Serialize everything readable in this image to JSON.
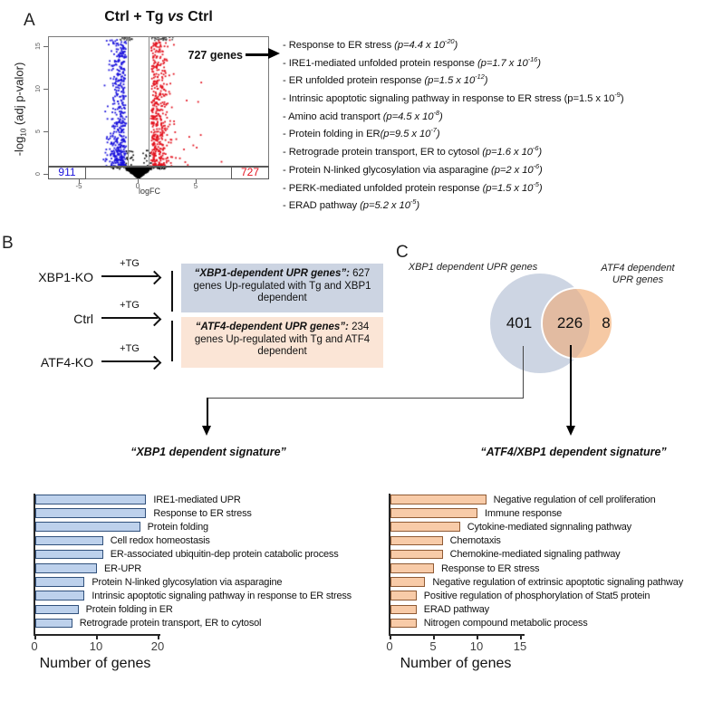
{
  "panels": {
    "a": "A",
    "b": "B",
    "c": "C"
  },
  "volcano": {
    "title_pre": "Ctrl + Tg ",
    "title_vs": "vs",
    "title_post": " Ctrl",
    "ylabel_pre": "-log",
    "ylabel_sub": "10",
    "ylabel_post": " (adj p-valor)"
  },
  "go_terms": [
    {
      "term": "Response to ER stress",
      "p": "  (p=4.4 x 10",
      "exp": "-20",
      "it": true
    },
    {
      "term": "IRE1-mediated unfolded protein response",
      "p": "  (p=1.7 x 10",
      "exp": "-16",
      "it": true
    },
    {
      "term": "ER unfolded protein response",
      "p": "  (p=1.5 x 10",
      "exp": "-12",
      "it": true
    },
    {
      "term": "Intrinsic apoptotic signaling pathway in response to ER stress",
      "p": " (p=1.5 x 10",
      "exp": "-9",
      "it": false
    },
    {
      "term": "Amino acid transport",
      "p": " (p=4.5 x 10",
      "exp": "-8",
      "it": true
    },
    {
      "term": "Protein folding in ER",
      "p": "(p=9.5 x 10",
      "exp": "-7",
      "it": true
    },
    {
      "term": "Retrograde protein transport, ER to cytosol",
      "p": " (p=1.6 x 10",
      "exp": "-6",
      "it": true
    },
    {
      "term": "Protein N-linked glycosylation via asparagine",
      "p": "  (p=2 x 10",
      "exp": "-6",
      "it": true
    },
    {
      "term": "PERK-mediated unfolded protein response",
      "p": "  (p=1.5 x 10",
      "exp": "-5",
      "it": true
    },
    {
      "term": "ERAD pathway",
      "p": " (p=5.2 x 10",
      "exp": "-5",
      "it": true
    }
  ],
  "panel_b": {
    "rows": [
      {
        "label": "XBP1-KO",
        "arrow_label": "+TG"
      },
      {
        "label": "Ctrl",
        "arrow_label": "+TG"
      },
      {
        "label": "ATF4-KO",
        "arrow_label": "+TG"
      }
    ],
    "boxes": [
      {
        "title": "“XBP1-dependent UPR genes”:",
        "body": "627 genes Up-regulated with Tg and XBP1 dependent",
        "bg": "#ccd4e2"
      },
      {
        "title": "“ATF4-dependent UPR genes”:",
        "body": "234 genes Up-regulated with Tg and ATF4 dependent",
        "bg": "#fbe5d6"
      }
    ]
  },
  "venn": {
    "left_label": "XBP1 dependent UPR genes",
    "right_label": "ATF4 dependent UPR genes",
    "left_color": "#cdd5e3",
    "right_color": "#f6c9a4",
    "overlap_color": "#e2bba1"
  },
  "signatures": {
    "left": "“XBP1 dependent signature”",
    "right": "“ATF4/XBP1 dependent signature”"
  },
  "bar_style": {
    "left_fill": "#bdd1ec",
    "left_stroke": "#31517c",
    "right_fill": "#f8cba8",
    "right_stroke": "#8f5a34"
  },
  "chart_data": [
    {
      "id": "volcano",
      "type": "scatter",
      "subtype": "volcano-plot",
      "title": "Ctrl + Tg vs Ctrl",
      "xlabel": "logFC",
      "ylabel": "-log10 (adj p-valor)",
      "x_ticks": [
        -5,
        0,
        5
      ],
      "y_ticks": [
        0,
        5,
        10,
        15
      ],
      "xlim": [
        -7.6,
        11.2
      ],
      "ylim": [
        0,
        15.9
      ],
      "fc_threshold": [
        -1,
        1
      ],
      "significant_down": 911,
      "significant_up": 727,
      "annotation": "727 genes",
      "colors": {
        "up": "#e3111d",
        "down": "#1a12dc",
        "nonsig": "#000000"
      }
    },
    {
      "id": "venn",
      "type": "venn",
      "sets": [
        {
          "label": "XBP1 dependent UPR genes",
          "only": 401
        },
        {
          "label": "ATF4 dependent UPR genes",
          "only": 8
        }
      ],
      "overlap": 226
    },
    {
      "id": "xbp1_signature",
      "type": "bar",
      "orientation": "horizontal",
      "title": "XBP1 dependent signature",
      "xlabel": "Number of genes",
      "x_ticks": [
        0,
        10,
        20
      ],
      "xlim": [
        0,
        20
      ],
      "categories": [
        "IRE1-mediated UPR",
        "Response to ER stress",
        "Protein folding",
        "Cell redox homeostasis",
        "ER-associated ubiquitin-dep protein catabolic process",
        "ER-UPR",
        "Protein N-linked glycosylation via asparagine",
        "Intrinsic apoptotic signaling pathway in response to ER stress",
        "Protein folding in ER",
        "Retrograde protein transport, ER to cytosol"
      ],
      "values": [
        18,
        18,
        17,
        11,
        11,
        10,
        8,
        8,
        7,
        6
      ]
    },
    {
      "id": "atf4_xbp1_signature",
      "type": "bar",
      "orientation": "horizontal",
      "title": "ATF4/XBP1 dependent signature",
      "xlabel": "Number of genes",
      "x_ticks": [
        0,
        5,
        10,
        15
      ],
      "xlim": [
        0,
        15
      ],
      "categories": [
        "Negative regulation of cell proliferation",
        "Immune response",
        "Cytokine-mediated signnaling pathway",
        "Chemotaxis",
        "Chemokine-mediated signaling pathway",
        "Response to ER stress",
        "Negative regulation of extrinsic apoptotic signaling pathway",
        "Positive regulation of phosphorylation of Stat5 protein",
        "ERAD pathway",
        "Nitrogen compound metabolic process"
      ],
      "values": [
        11,
        10,
        8,
        6,
        6,
        5,
        4,
        3,
        3,
        3
      ]
    }
  ]
}
